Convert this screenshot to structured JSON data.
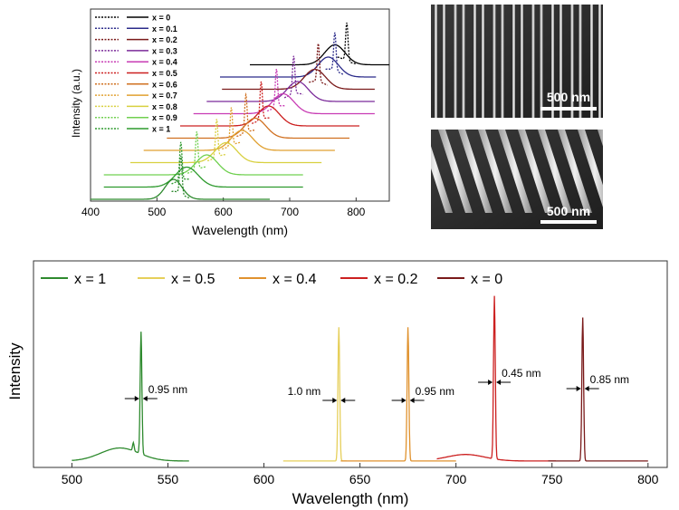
{
  "chart_data": [
    {
      "type": "line",
      "xlabel": "Wavelength (nm)",
      "ylabel": "Intensity (a.u.)",
      "xlim": [
        400,
        850
      ],
      "xticks": [
        "400",
        "500",
        "600",
        "700",
        "800"
      ],
      "legend_placement": "top-left",
      "description_of_offset": "",
      "series": [
        {
          "name": "x = 0",
          "color": "#000000",
          "pl_peak": 768,
          "pl_fwhm": 36,
          "laser_peak": 786,
          "x_range": [
            640,
            850
          ]
        },
        {
          "name": "x = 0.1",
          "color": "#2b2b8a",
          "pl_peak": 758,
          "pl_fwhm": 36,
          "laser_peak": 768,
          "x_range": [
            595,
            830
          ]
        },
        {
          "name": "x = 0.2",
          "color": "#7a1a1a",
          "pl_peak": 738,
          "pl_fwhm": 38,
          "laser_peak": 743,
          "x_range": [
            598,
            828
          ]
        },
        {
          "name": "x = 0.3",
          "color": "#7b2b9a",
          "pl_peak": 712,
          "pl_fwhm": 38,
          "laser_peak": 706,
          "x_range": [
            575,
            828
          ]
        },
        {
          "name": "x = 0.4",
          "color": "#c83cb4",
          "pl_peak": 690,
          "pl_fwhm": 38,
          "laser_peak": 680,
          "x_range": [
            555,
            828
          ]
        },
        {
          "name": "x = 0.5",
          "color": "#cc2020",
          "pl_peak": 668,
          "pl_fwhm": 38,
          "laser_peak": 657,
          "x_range": [
            535,
            805
          ]
        },
        {
          "name": "x = 0.6",
          "color": "#d07020",
          "pl_peak": 648,
          "pl_fwhm": 38,
          "laser_peak": 634,
          "x_range": [
            515,
            790
          ]
        },
        {
          "name": "x = 0.7",
          "color": "#e0a030",
          "pl_peak": 628,
          "pl_fwhm": 38,
          "laser_peak": 612,
          "x_range": [
            480,
            768
          ]
        },
        {
          "name": "x = 0.8",
          "color": "#d8d040",
          "pl_peak": 604,
          "pl_fwhm": 38,
          "laser_peak": 590,
          "x_range": [
            460,
            748
          ]
        },
        {
          "name": "x = 0.9",
          "color": "#70d050",
          "pl_peak": 575,
          "pl_fwhm": 38,
          "laser_peak": 560,
          "x_range": [
            420,
            720
          ]
        },
        {
          "name": "x = 1",
          "color": "#2e9a2e",
          "pl_peak": 545,
          "pl_fwhm": 40,
          "laser_peak": 536,
          "x_range": [
            420,
            720
          ]
        },
        {
          "name": "",
          "color": "#2e8a2e",
          "pl_peak": 525,
          "pl_fwhm": 30,
          "laser_peak": 536,
          "x_range": [
            400,
            670
          ]
        }
      ]
    },
    {
      "type": "image",
      "scale_bar": "500 nm"
    },
    {
      "type": "image",
      "scale_bar": "500 nm"
    },
    {
      "type": "line",
      "xlabel": "Wavelength (nm)",
      "ylabel": "Intensity",
      "xlim": [
        480,
        810
      ],
      "xticks": [
        "500",
        "550",
        "600",
        "650",
        "700",
        "750",
        "800"
      ],
      "legend_placement": "top",
      "series": [
        {
          "name": "x = 1",
          "color": "#2e8a2e",
          "laser_peak": 536,
          "peak_height": 0.75,
          "pl_peak": 525,
          "pl_height": 0.08,
          "x_range": [
            500,
            561
          ]
        },
        {
          "name": "x = 0.5",
          "color": "#e6cf5a",
          "laser_peak": 639,
          "peak_height": 0.82,
          "pl_peak": 0,
          "pl_height": 0,
          "x_range": [
            610,
            643
          ]
        },
        {
          "name": "x = 0.4",
          "color": "#e0922e",
          "laser_peak": 675,
          "peak_height": 0.82,
          "pl_peak": 0,
          "pl_height": 0,
          "x_range": [
            640,
            700
          ]
        },
        {
          "name": "x = 0.2",
          "color": "#cc2020",
          "laser_peak": 720,
          "peak_height": 1.0,
          "pl_peak": 705,
          "pl_height": 0.04,
          "x_range": [
            690,
            752
          ]
        },
        {
          "name": "x = 0",
          "color": "#7a1a1a",
          "laser_peak": 766,
          "peak_height": 0.88,
          "pl_peak": 0,
          "pl_height": 0,
          "x_range": [
            748,
            800
          ]
        }
      ],
      "annotations": [
        {
          "text": "0.95 nm",
          "x": 536
        },
        {
          "text": "1.0 nm",
          "x": 639
        },
        {
          "text": "0.95 nm",
          "x": 675
        },
        {
          "text": "0.45 nm",
          "x": 720
        },
        {
          "text": "0.85 nm",
          "x": 766
        }
      ]
    }
  ]
}
